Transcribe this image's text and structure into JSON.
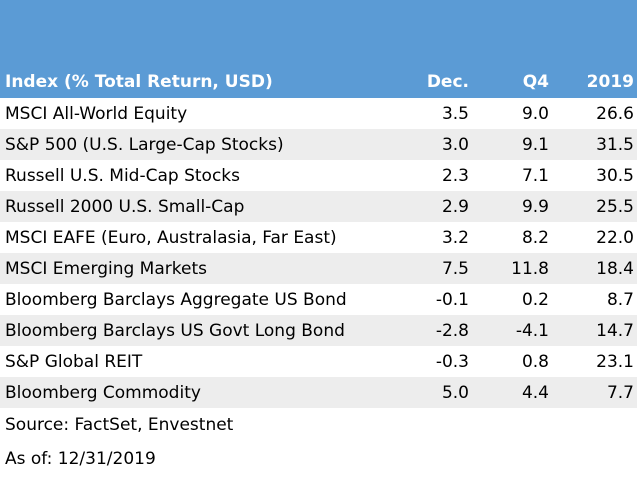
{
  "table": {
    "headers": {
      "name": "Index (% Total Return, USD)",
      "dec": "Dec.",
      "q4": "Q4",
      "year": "2019"
    },
    "rows": [
      {
        "name": "MSCI All-World Equity",
        "dec": "3.5",
        "q4": "9.0",
        "year": "26.6"
      },
      {
        "name": "S&P 500 (U.S. Large-Cap Stocks)",
        "dec": "3.0",
        "q4": "9.1",
        "year": "31.5"
      },
      {
        "name": "Russell U.S. Mid-Cap Stocks",
        "dec": "2.3",
        "q4": "7.1",
        "year": "30.5"
      },
      {
        "name": "Russell 2000 U.S. Small-Cap",
        "dec": "2.9",
        "q4": "9.9",
        "year": "25.5"
      },
      {
        "name": "MSCI EAFE (Euro, Australasia, Far East)",
        "dec": "3.2",
        "q4": "8.2",
        "year": "22.0"
      },
      {
        "name": "MSCI Emerging Markets",
        "dec": "7.5",
        "q4": "11.8",
        "year": "18.4"
      },
      {
        "name": "Bloomberg Barclays Aggregate US Bond",
        "dec": "-0.1",
        "q4": "0.2",
        "year": "8.7"
      },
      {
        "name": "Bloomberg Barclays US Govt Long Bond",
        "dec": "-2.8",
        "q4": "-4.1",
        "year": "14.7"
      },
      {
        "name": "S&P Global REIT",
        "dec": "-0.3",
        "q4": "0.8",
        "year": "23.1"
      },
      {
        "name": "Bloomberg Commodity",
        "dec": "5.0",
        "q4": "4.4",
        "year": "7.7"
      }
    ]
  },
  "footer": {
    "source": "Source: FactSet, Envestnet",
    "as_of": "As of: 12/31/2019"
  },
  "colors": {
    "header_bg": "#5b9bd5",
    "stripe": "#ededed"
  }
}
